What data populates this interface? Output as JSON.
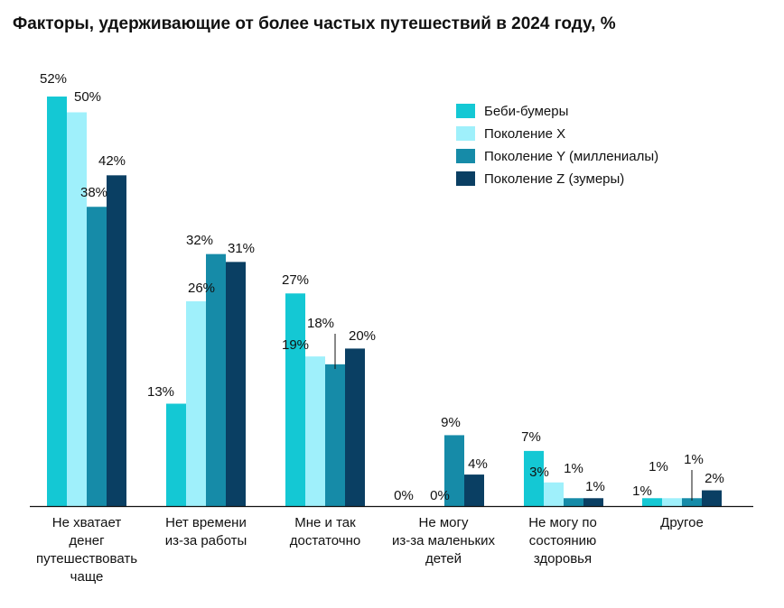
{
  "title": "Факторы, удерживающие от более частых путешествий в 2024 году, %",
  "colors": {
    "boomers": "#14c8d4",
    "gen_x": "#9ff0fb",
    "gen_y": "#168ba8",
    "gen_z": "#0a3f63",
    "axis": "#111111"
  },
  "chart_data": {
    "type": "bar",
    "title": "Факторы, удерживающие от более частых путешествий в 2024 году, %",
    "xlabel": "",
    "ylabel": "",
    "ylim": [
      0,
      55
    ],
    "grid": false,
    "legend_position": "top-right",
    "categories": [
      [
        "Не хватает",
        "денег",
        "путешествовать",
        "чаще"
      ],
      [
        "Нет времени",
        "из-за работы"
      ],
      [
        "Мне и так",
        "достаточно"
      ],
      [
        "Не могу",
        "из-за маленьких",
        "детей"
      ],
      [
        "Не могу по",
        "состоянию",
        "здоровья"
      ],
      [
        "Другое"
      ]
    ],
    "series": [
      {
        "name": "Беби-бумеры",
        "color": "#14c8d4",
        "values": [
          52,
          13,
          27,
          0,
          7,
          1
        ],
        "labels": [
          "52%",
          "13%",
          "27%",
          "0%",
          "7%",
          "1%"
        ]
      },
      {
        "name": "Поколение X",
        "color": "#9ff0fb",
        "values": [
          50,
          26,
          19,
          0,
          3,
          1
        ],
        "labels": [
          "50%",
          "26%",
          "19%",
          "0%",
          "3%",
          "1%"
        ]
      },
      {
        "name": "Поколение Y (миллениалы)",
        "color": "#168ba8",
        "values": [
          38,
          32,
          18,
          9,
          1,
          1
        ],
        "labels": [
          "38%",
          "32%",
          "18%",
          "9%",
          "1%",
          "1%"
        ]
      },
      {
        "name": "Поколение Z (зумеры)",
        "color": "#0a3f63",
        "values": [
          42,
          31,
          20,
          4,
          1,
          2
        ],
        "labels": [
          "42%",
          "31%",
          "20%",
          "4%",
          "1%",
          "2%"
        ]
      }
    ]
  }
}
